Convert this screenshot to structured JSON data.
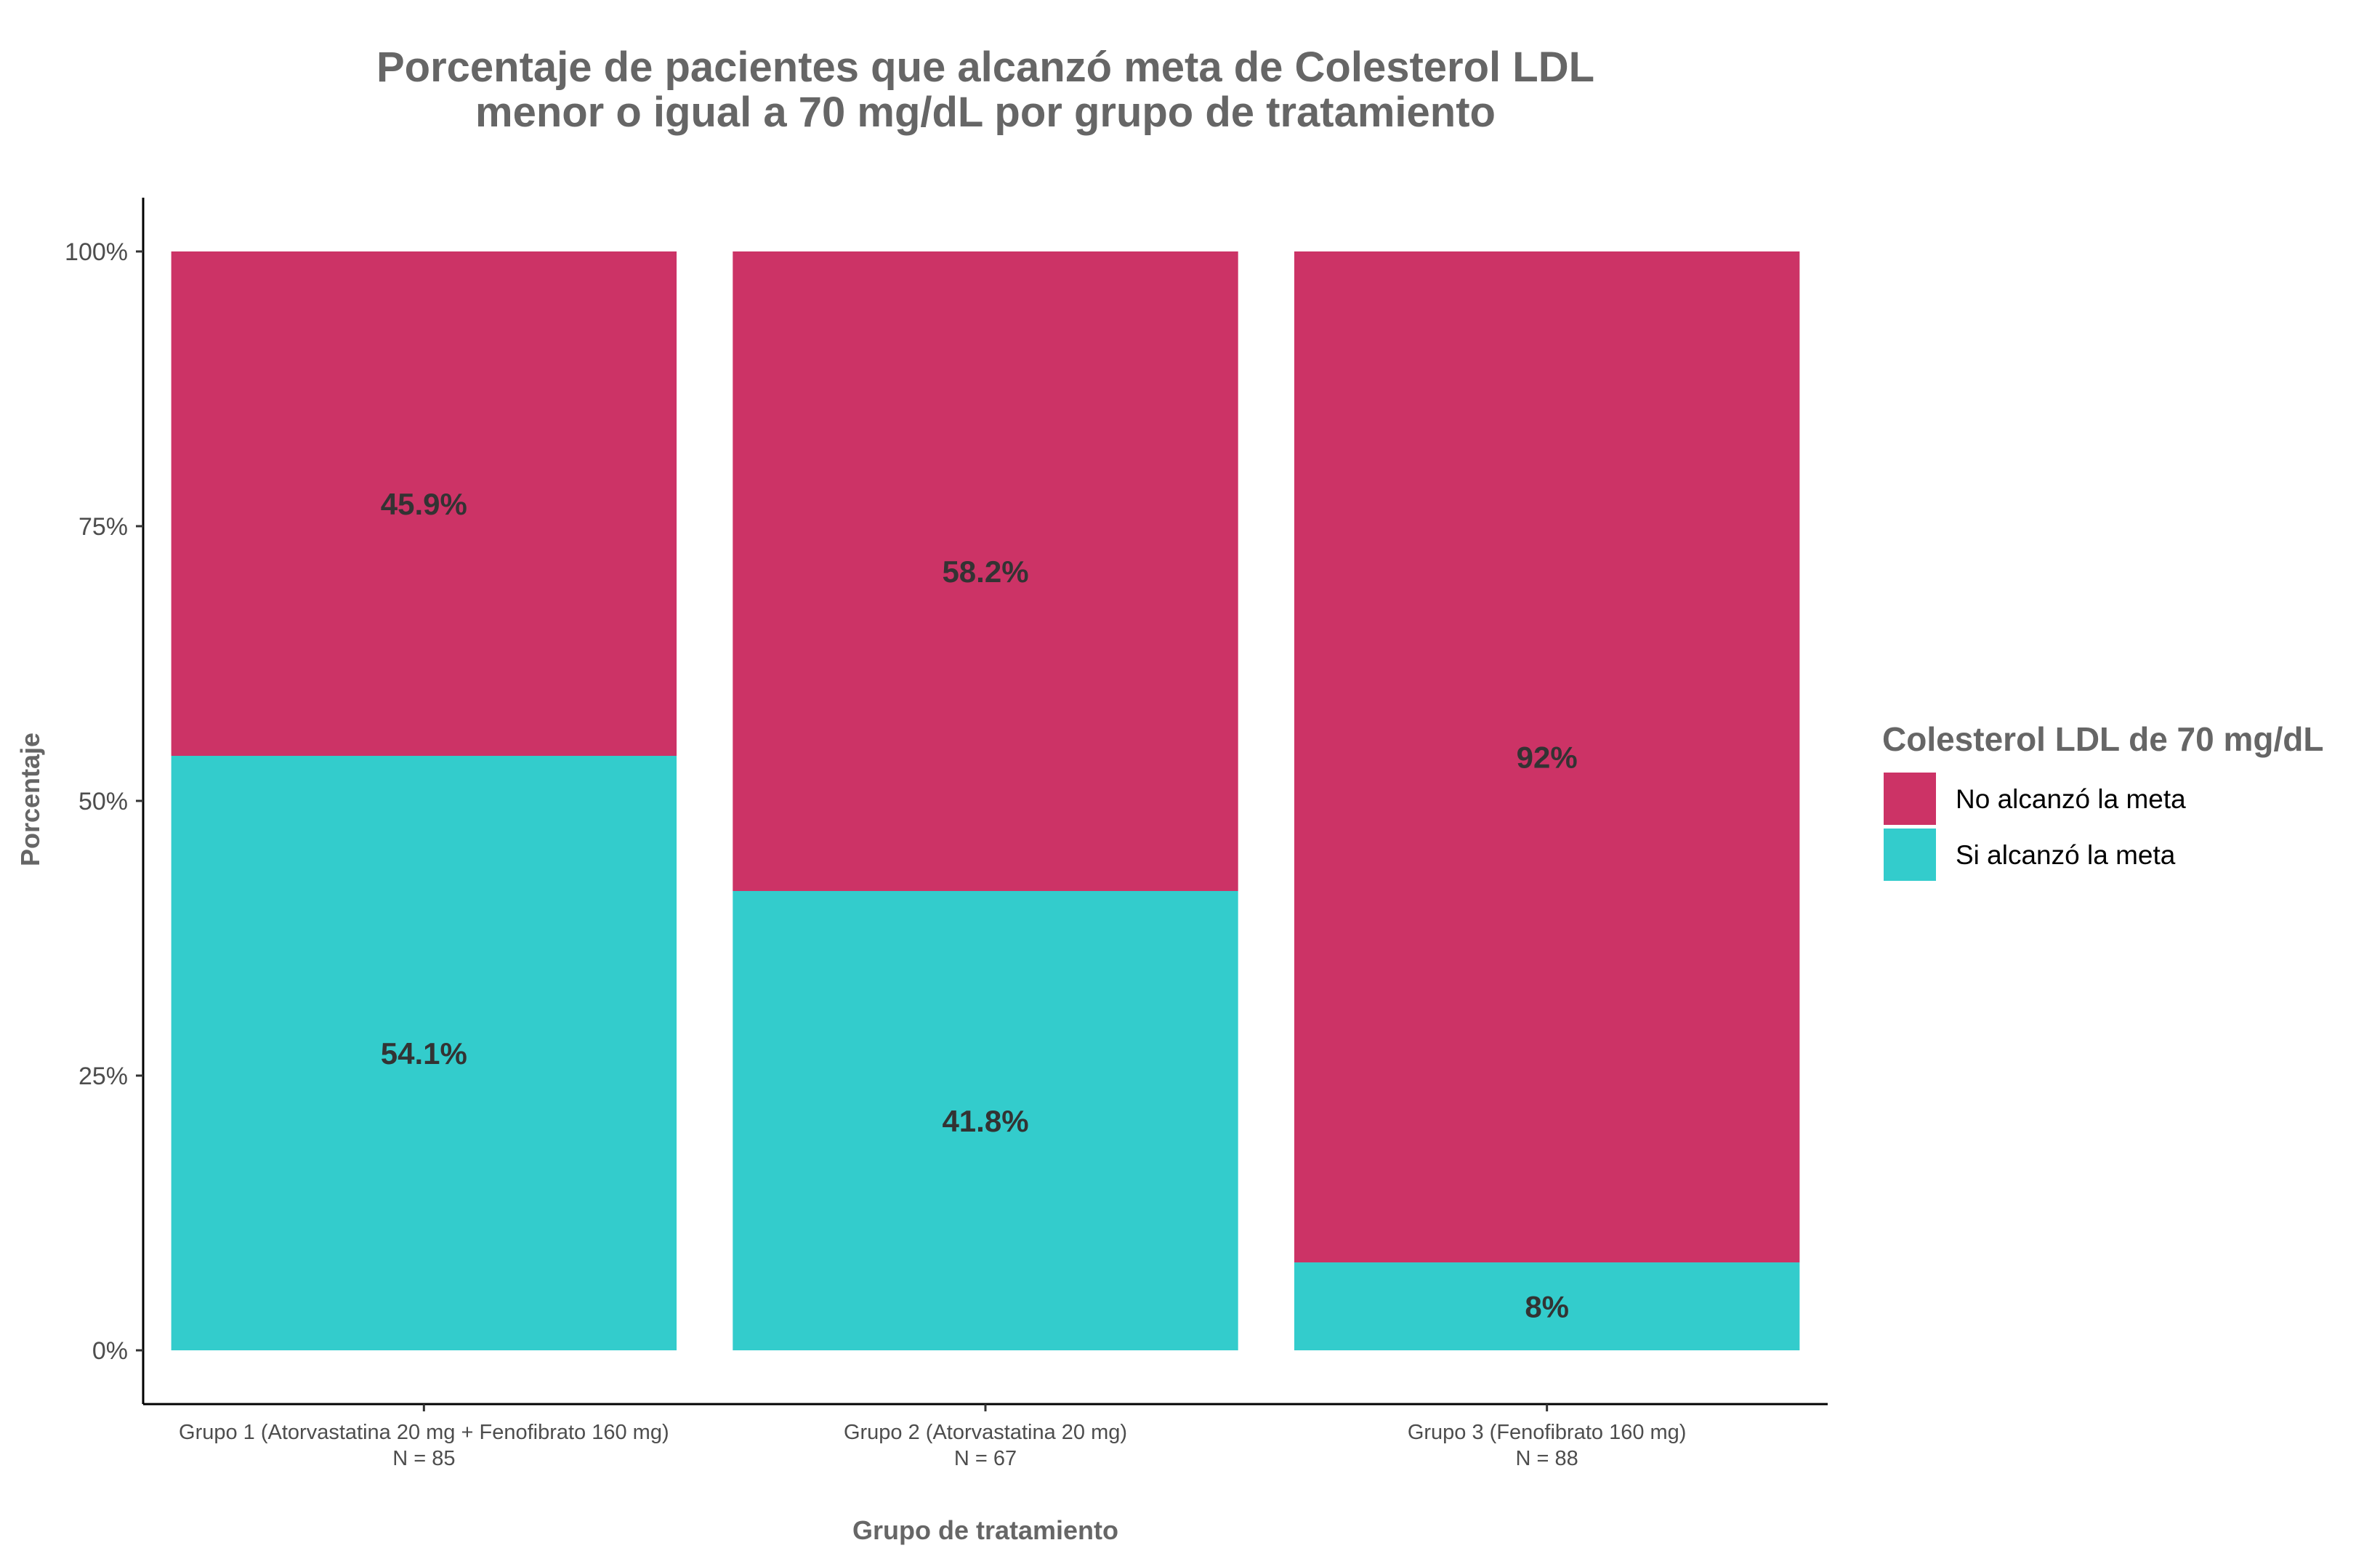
{
  "chart_data": {
    "type": "bar",
    "stacked": true,
    "title": [
      "Porcentaje de pacientes que alcanzó meta de Colesterol LDL",
      "menor o igual a 70 mg/dL por grupo de tratamiento"
    ],
    "xlabel": "Grupo de tratamiento",
    "ylabel": "Porcentaje",
    "ylim": [
      0,
      100
    ],
    "y_ticks": [
      {
        "value": 0,
        "label": "0%"
      },
      {
        "value": 25,
        "label": "25%"
      },
      {
        "value": 50,
        "label": "50%"
      },
      {
        "value": 75,
        "label": "75%"
      },
      {
        "value": 100,
        "label": "100%"
      }
    ],
    "categories": [
      {
        "name": "Grupo 1 (Atorvastatina 20 mg + Fenofibrato 160 mg)",
        "n": "N = 85"
      },
      {
        "name": "Grupo 2 (Atorvastatina 20 mg)",
        "n": "N = 67"
      },
      {
        "name": "Grupo 3 (Fenofibrato 160 mg)",
        "n": "N = 88"
      }
    ],
    "series": [
      {
        "name": "Si alcanzó la meta",
        "color": "#33CCCC",
        "values": [
          54.1,
          41.8,
          8
        ],
        "labels": [
          "54.1%",
          "41.8%",
          "8%"
        ]
      },
      {
        "name": "No alcanzó la meta",
        "color": "#CC3366",
        "values": [
          45.9,
          58.2,
          92
        ],
        "labels": [
          "45.9%",
          "58.2%",
          "92%"
        ]
      }
    ],
    "legend": {
      "title": "Colesterol LDL de 70 mg/dL",
      "position": "right",
      "order": [
        "No alcanzó la meta",
        "Si alcanzó la meta"
      ]
    },
    "grid": false
  }
}
